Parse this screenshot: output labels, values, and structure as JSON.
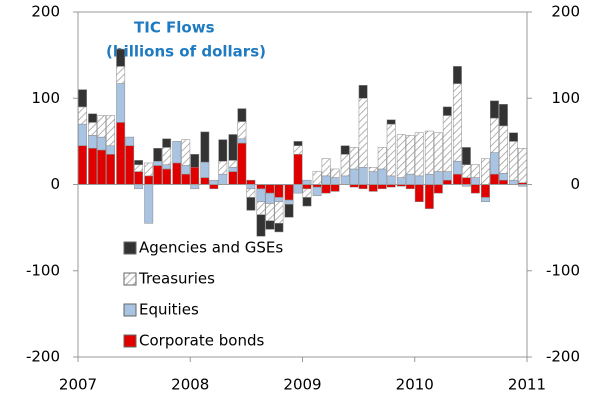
{
  "chart_data": {
    "type": "stacked-bar",
    "title": "TIC Flows",
    "subtitle": "(billions of dollars)",
    "x": [
      2007.04,
      2007.13,
      2007.21,
      2007.29,
      2007.38,
      2007.46,
      2007.54,
      2007.63,
      2007.71,
      2007.79,
      2007.88,
      2007.96,
      2008.04,
      2008.13,
      2008.21,
      2008.29,
      2008.38,
      2008.46,
      2008.54,
      2008.63,
      2008.71,
      2008.79,
      2008.88,
      2008.96,
      2009.04,
      2009.13,
      2009.21,
      2009.29,
      2009.38,
      2009.46,
      2009.54,
      2009.63,
      2009.71,
      2009.79,
      2009.88,
      2009.96,
      2010.04,
      2010.13,
      2010.21,
      2010.29,
      2010.38,
      2010.46,
      2010.54,
      2010.63,
      2010.71,
      2010.79,
      2010.88,
      2010.96
    ],
    "series": [
      {
        "name": "Corporate bonds",
        "color": "#e00000",
        "values": [
          45,
          42,
          40,
          35,
          72,
          45,
          15,
          10,
          22,
          18,
          25,
          12,
          20,
          8,
          -5,
          0,
          15,
          48,
          5,
          -5,
          -10,
          -15,
          -18,
          35,
          -5,
          -3,
          -10,
          -8,
          0,
          -3,
          -5,
          -8,
          -5,
          -3,
          -2,
          -5,
          -20,
          -28,
          -10,
          5,
          12,
          8,
          -10,
          -15,
          12,
          5,
          0,
          2
        ]
      },
      {
        "name": "Equities",
        "color": "#a9c3e3",
        "values": [
          25,
          15,
          15,
          10,
          45,
          10,
          -5,
          -45,
          5,
          5,
          25,
          10,
          -5,
          18,
          5,
          12,
          5,
          5,
          -5,
          -15,
          -12,
          -5,
          -5,
          -10,
          5,
          -10,
          10,
          8,
          10,
          18,
          20,
          15,
          18,
          10,
          8,
          12,
          10,
          12,
          15,
          10,
          15,
          -2,
          8,
          -5,
          25,
          8,
          5,
          -2
        ]
      },
      {
        "name": "Treasuries",
        "color": "#ffffff",
        "values": [
          20,
          15,
          25,
          35,
          20,
          0,
          8,
          15,
          0,
          20,
          0,
          30,
          0,
          0,
          0,
          15,
          8,
          20,
          -10,
          -15,
          -20,
          -25,
          0,
          10,
          -10,
          15,
          20,
          10,
          25,
          25,
          80,
          5,
          25,
          60,
          50,
          45,
          50,
          50,
          45,
          65,
          90,
          15,
          15,
          30,
          40,
          55,
          45,
          40
        ]
      },
      {
        "name": "Agencies and GSEs",
        "color": "#333333",
        "values": [
          20,
          10,
          0,
          0,
          20,
          0,
          5,
          0,
          15,
          10,
          0,
          0,
          15,
          35,
          0,
          25,
          30,
          15,
          -15,
          -25,
          -10,
          -10,
          -15,
          5,
          -10,
          0,
          0,
          0,
          10,
          0,
          15,
          0,
          0,
          5,
          0,
          0,
          0,
          0,
          0,
          10,
          20,
          20,
          0,
          0,
          20,
          25,
          10,
          0
        ]
      }
    ],
    "xlim": [
      2007,
      2011
    ],
    "xticks": [
      2007,
      2008,
      2009,
      2010,
      2011
    ],
    "ylim": [
      -200,
      200
    ],
    "yticks": [
      -200,
      -100,
      0,
      100,
      200
    ],
    "y2lim": [
      -200,
      200
    ],
    "y2ticks": [
      -200,
      -100,
      0,
      100,
      200
    ],
    "legend": "lower left"
  }
}
